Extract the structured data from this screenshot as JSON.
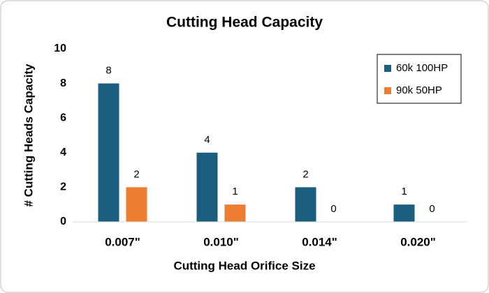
{
  "chart_data": {
    "type": "bar",
    "title": "Cutting Head Capacity",
    "x_label": "Cutting Head Orifice Size",
    "y_label": "# Cutting Heads Capacity",
    "categories": [
      "0.007\"",
      "0.010\"",
      "0.014\"",
      "0.020\""
    ],
    "series": [
      {
        "name": "60k 100HP",
        "color": "#1b5e80",
        "values": [
          8,
          4,
          2,
          1
        ]
      },
      {
        "name": "90k 50HP",
        "color": "#ed7d31",
        "values": [
          2,
          1,
          0,
          0
        ]
      }
    ],
    "ylim": [
      0,
      10
    ],
    "yticks": [
      0,
      2,
      4,
      6,
      8,
      10
    ],
    "grid": false,
    "legend": "top-right",
    "data_labels": true
  }
}
